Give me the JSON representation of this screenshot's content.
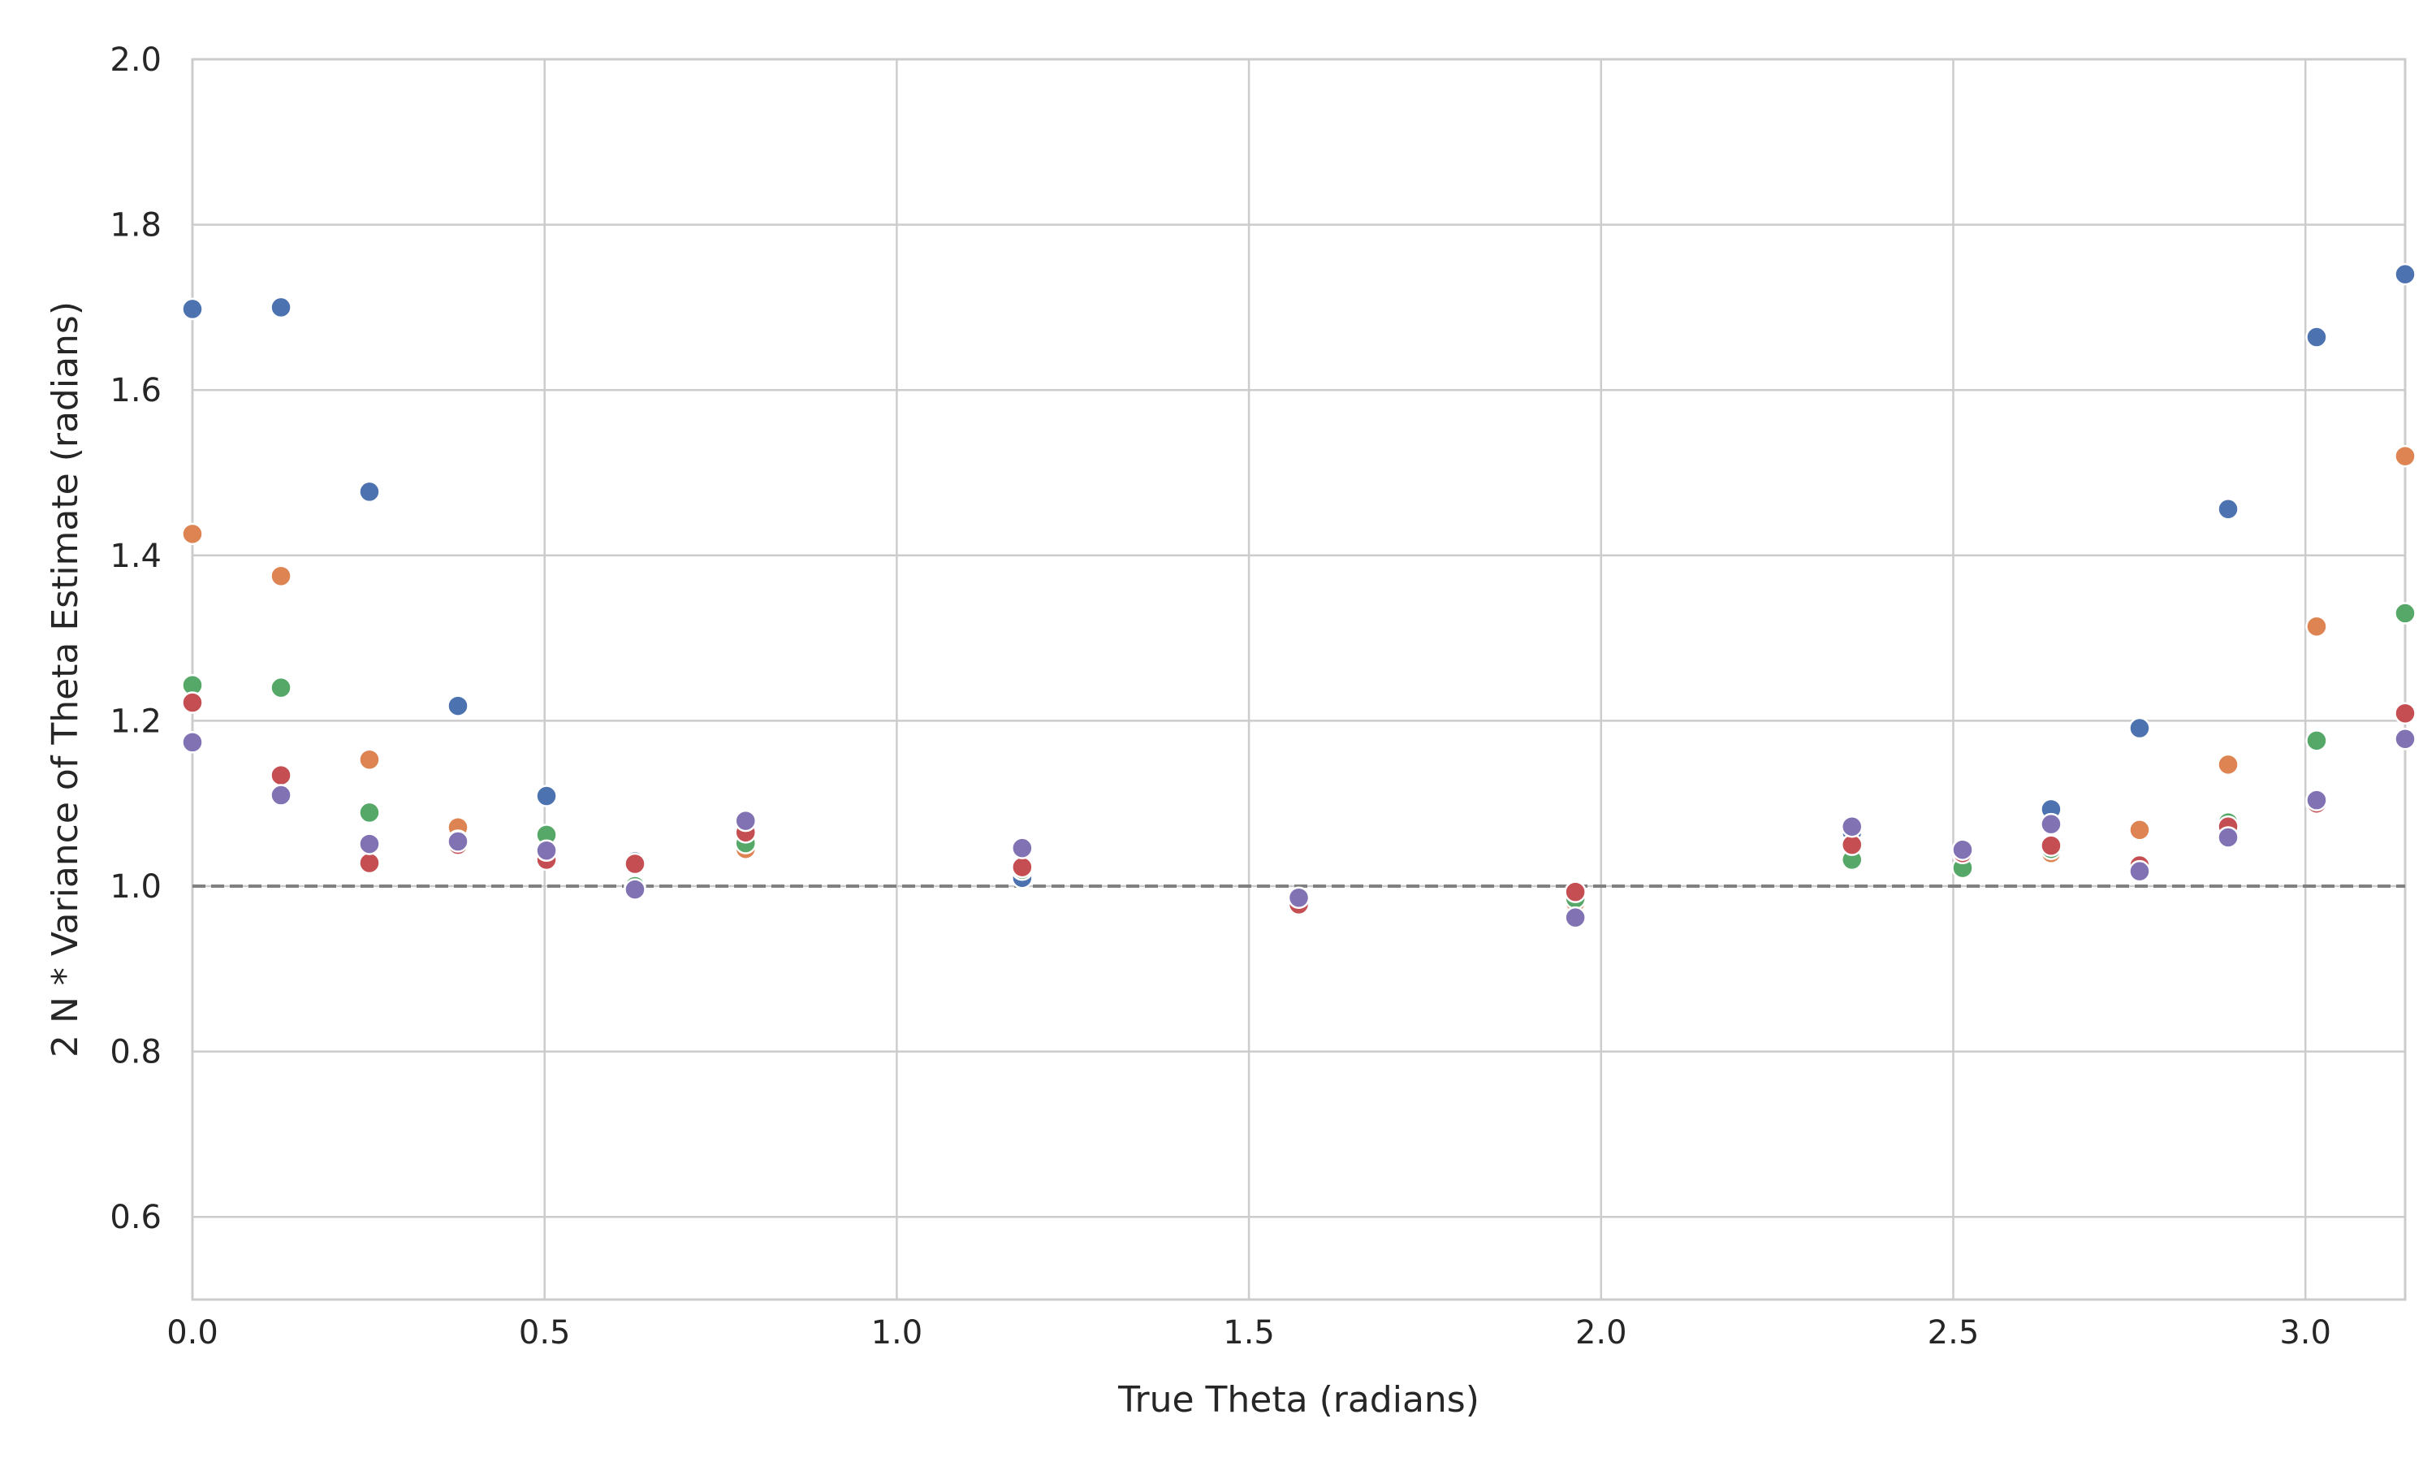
{
  "chart_data": {
    "type": "scatter",
    "title": "",
    "xlabel": "True Theta (radians)",
    "ylabel": "2 N * Variance of Theta Estimate (radians)",
    "xlim": [
      0,
      3.1416
    ],
    "ylim": [
      0.5,
      2.0
    ],
    "xticks": [
      0.0,
      0.5,
      1.0,
      1.5,
      2.0,
      2.5,
      3.0
    ],
    "yticks": [
      0.6,
      0.8,
      1.0,
      1.2,
      1.4,
      1.6,
      1.8,
      2.0
    ],
    "xtick_labels": [
      "0.0",
      "0.5",
      "1.0",
      "1.5",
      "2.0",
      "2.5",
      "3.0"
    ],
    "ytick_labels": [
      "0.6",
      "0.8",
      "1.0",
      "1.2",
      "1.4",
      "1.6",
      "1.8",
      "2.0"
    ],
    "grid": true,
    "legend": "none",
    "reference_line": {
      "y": 1.0,
      "style": "dashed",
      "color": "#808080"
    },
    "series": [
      {
        "color": "#4c72b0",
        "points": [
          [
            0.0,
            1.698
          ],
          [
            0.1257,
            1.7
          ],
          [
            0.2513,
            1.477
          ],
          [
            0.377,
            1.218
          ],
          [
            0.5027,
            1.109
          ],
          [
            0.6283,
            1.03
          ],
          [
            0.7854,
            1.07
          ],
          [
            1.1781,
            1.01
          ],
          [
            1.5708,
            0.985
          ],
          [
            1.9635,
            0.985
          ],
          [
            2.3562,
            1.065
          ],
          [
            2.5133,
            1.04
          ],
          [
            2.6389,
            1.093
          ],
          [
            2.7646,
            1.191
          ],
          [
            2.8903,
            1.456
          ],
          [
            3.0159,
            1.664
          ],
          [
            3.1416,
            1.74
          ]
        ]
      },
      {
        "color": "#dd8452",
        "points": [
          [
            0.0,
            1.426
          ],
          [
            0.1257,
            1.375
          ],
          [
            0.2513,
            1.153
          ],
          [
            0.377,
            1.071
          ],
          [
            0.5027,
            1.04
          ],
          [
            0.6283,
            1.025
          ],
          [
            0.7854,
            1.045
          ],
          [
            1.1781,
            1.02
          ],
          [
            1.5708,
            0.98
          ],
          [
            1.9635,
            0.98
          ],
          [
            2.3562,
            1.05
          ],
          [
            2.5133,
            1.04
          ],
          [
            2.6389,
            1.04
          ],
          [
            2.7646,
            1.068
          ],
          [
            2.8903,
            1.147
          ],
          [
            3.0159,
            1.314
          ],
          [
            3.1416,
            1.52
          ]
        ]
      },
      {
        "color": "#55a868",
        "points": [
          [
            0.0,
            1.243
          ],
          [
            0.1257,
            1.24
          ],
          [
            0.2513,
            1.089
          ],
          [
            0.377,
            1.055
          ],
          [
            0.5027,
            1.062
          ],
          [
            0.6283,
            1.0
          ],
          [
            0.7854,
            1.052
          ],
          [
            1.1781,
            1.02
          ],
          [
            1.5708,
            0.98
          ],
          [
            1.9635,
            0.985
          ],
          [
            2.3562,
            1.032
          ],
          [
            2.5133,
            1.022
          ],
          [
            2.6389,
            1.045
          ],
          [
            2.7646,
            1.02
          ],
          [
            2.8903,
            1.077
          ],
          [
            3.0159,
            1.176
          ],
          [
            3.1416,
            1.33
          ]
        ]
      },
      {
        "color": "#c44e52",
        "points": [
          [
            0.0,
            1.222
          ],
          [
            0.1257,
            1.134
          ],
          [
            0.2513,
            1.028
          ],
          [
            0.377,
            1.05
          ],
          [
            0.5027,
            1.032
          ],
          [
            0.6283,
            1.027
          ],
          [
            0.7854,
            1.065
          ],
          [
            1.1781,
            1.023
          ],
          [
            1.5708,
            0.978
          ],
          [
            1.9635,
            0.993
          ],
          [
            2.3562,
            1.05
          ],
          [
            2.5133,
            1.04
          ],
          [
            2.6389,
            1.049
          ],
          [
            2.7646,
            1.025
          ],
          [
            2.8903,
            1.072
          ],
          [
            3.0159,
            1.1
          ],
          [
            3.1416,
            1.209
          ]
        ]
      },
      {
        "color": "#8172b3",
        "points": [
          [
            0.0,
            1.174
          ],
          [
            0.1257,
            1.11
          ],
          [
            0.2513,
            1.051
          ],
          [
            0.377,
            1.054
          ],
          [
            0.5027,
            1.043
          ],
          [
            0.6283,
            0.996
          ],
          [
            0.7854,
            1.079
          ],
          [
            1.1781,
            1.046
          ],
          [
            1.5708,
            0.986
          ],
          [
            1.9635,
            0.962
          ],
          [
            2.3562,
            1.072
          ],
          [
            2.5133,
            1.044
          ],
          [
            2.6389,
            1.075
          ],
          [
            2.7646,
            1.018
          ],
          [
            2.8903,
            1.059
          ],
          [
            3.0159,
            1.104
          ],
          [
            3.1416,
            1.178
          ]
        ]
      }
    ]
  }
}
